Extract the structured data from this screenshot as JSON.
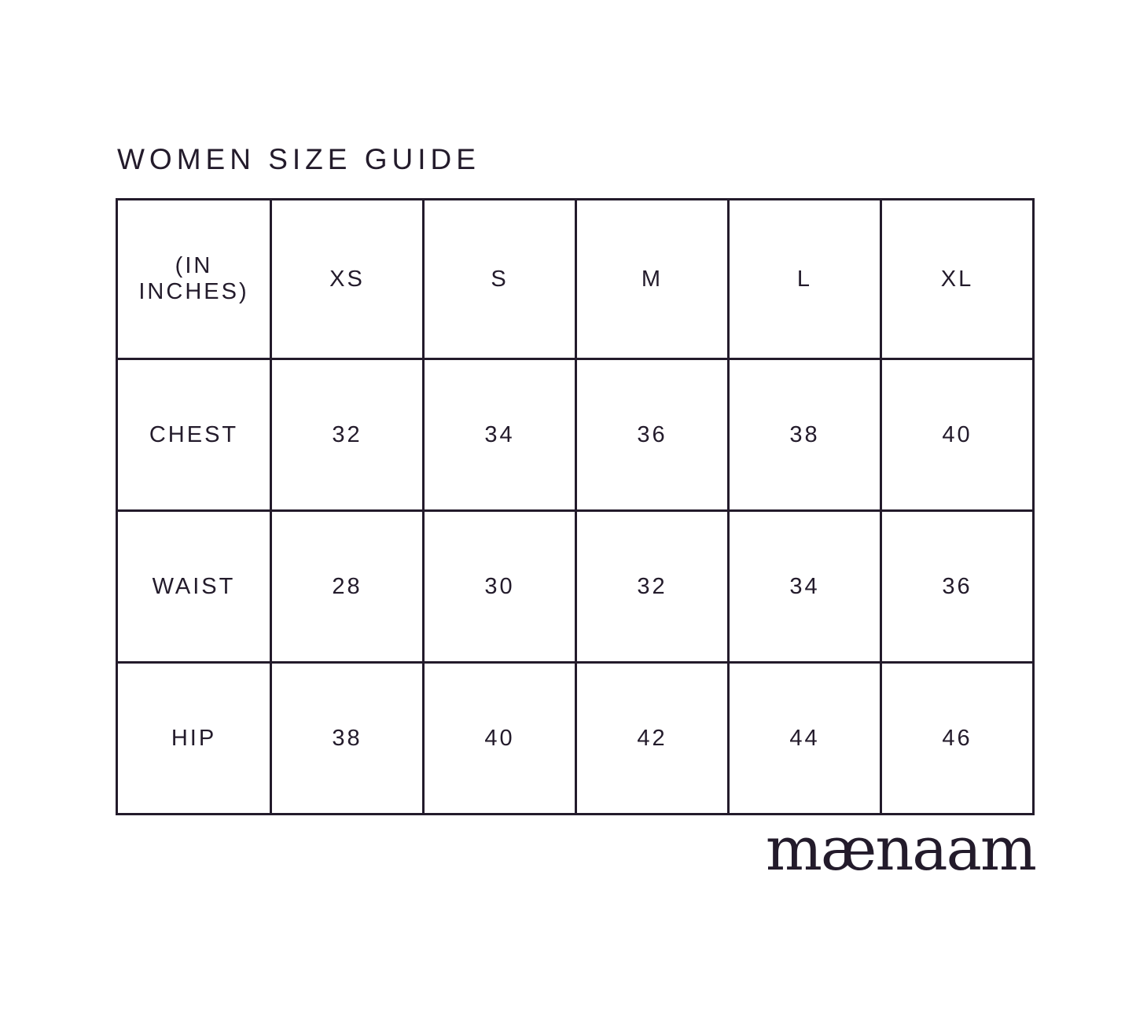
{
  "page": {
    "title": "WOMEN SIZE GUIDE",
    "brand": "mænaam"
  },
  "table": {
    "unit_label": "(IN INCHES)",
    "columns": [
      "XS",
      "S",
      "M",
      "L",
      "XL"
    ],
    "rows": [
      {
        "label": "CHEST",
        "values": [
          "32",
          "34",
          "36",
          "38",
          "40"
        ]
      },
      {
        "label": "WAIST",
        "values": [
          "28",
          "30",
          "32",
          "34",
          "36"
        ]
      },
      {
        "label": "HIP",
        "values": [
          "38",
          "40",
          "42",
          "44",
          "46"
        ]
      }
    ]
  },
  "colors": {
    "text": "#231b2b",
    "border": "#231b2b",
    "background": "#ffffff"
  }
}
